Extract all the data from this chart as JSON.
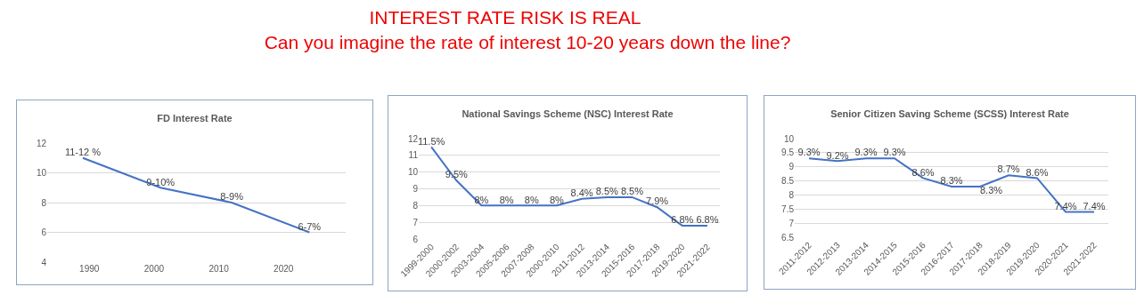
{
  "chart_data": [
    {
      "type": "other",
      "title": "INTEREST RATE RISK IS REAL",
      "subtitle": "Can you imagine the rate of interest 10-20 years down the line?"
    },
    {
      "type": "line",
      "title": "FD Interest Rate",
      "x": [
        1989,
        2001,
        2012,
        2024
      ],
      "values": [
        11,
        9,
        8,
        6
      ],
      "value_labels": [
        "11-12 %",
        "9-10%",
        "8-9%",
        "6-7%"
      ],
      "color": "#4472c4",
      "xlim": [
        1983.5,
        2029.6
      ],
      "xticks": [
        1990,
        2000,
        2010,
        2020
      ],
      "ylim": [
        4,
        12
      ],
      "yticks": [
        4,
        6,
        8,
        10,
        12
      ],
      "grid": "y"
    },
    {
      "type": "line",
      "title": "National Savings Scheme (NSC) Interest Rate",
      "categories": [
        "1999-2000",
        "2000-2002",
        "2003-2004",
        "2005-2006",
        "2007-2008",
        "2000-2010",
        "2011-2012",
        "2013-2014",
        "2015-2016",
        "2017-2018",
        "2019-2020",
        "2021-2022"
      ],
      "values": [
        11.5,
        9.5,
        8,
        8,
        8,
        8,
        8.4,
        8.5,
        8.5,
        7.9,
        6.8,
        6.8
      ],
      "value_labels": [
        "11.5%",
        "9.5%",
        "8%",
        "8%",
        "8%",
        "8%",
        "8.4%",
        "8.5%",
        "8.5%",
        "7.9%",
        "6.8%",
        "6.8%"
      ],
      "color": "#4472c4",
      "ylim": [
        6,
        12
      ],
      "yticks": [
        6,
        7,
        8,
        9,
        10,
        11,
        12
      ],
      "grid": "y"
    },
    {
      "type": "line",
      "title": "Senior Citizen Saving Scheme (SCSS) Interest Rate",
      "categories": [
        "2011-2012",
        "2012-2013",
        "2013-2014",
        "2014-2015",
        "2015-2016",
        "2016-2017",
        "2017-2018",
        "2018-2019",
        "2019-2020",
        "2020-2021",
        "2021-2022"
      ],
      "values": [
        9.3,
        9.2,
        9.3,
        9.3,
        8.6,
        8.3,
        8.3,
        8.7,
        8.6,
        7.4,
        7.4
      ],
      "value_labels": [
        "9.3%",
        "9.2%",
        "9.3%",
        "9.3%",
        "8.6%",
        "8.3%",
        "8.3%",
        "8.7%",
        "8.6%",
        "7.4%",
        "7.4%"
      ],
      "color": "#4472c4",
      "ylim": [
        6.5,
        10
      ],
      "yticks": [
        6.5,
        7,
        7.5,
        8,
        8.5,
        9,
        9.5,
        10
      ],
      "grid": "y"
    }
  ]
}
